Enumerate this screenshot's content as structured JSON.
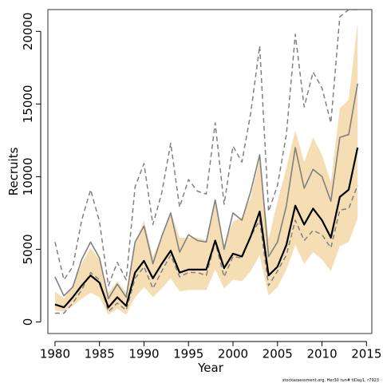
{
  "chart_data": {
    "type": "line",
    "title": "",
    "xlabel": "Year",
    "ylabel": "Recruits",
    "xlim": [
      1979.2,
      2015.6
    ],
    "ylim": [
      -800,
      21500
    ],
    "xticks": [
      1980,
      1985,
      1990,
      1995,
      2000,
      2005,
      2010,
      2015
    ],
    "yticks": [
      0,
      5000,
      10000,
      15000,
      20000
    ],
    "grid": false,
    "legend": "none",
    "x": [
      1980,
      1981,
      1982,
      1983,
      1984,
      1985,
      1986,
      1987,
      1988,
      1989,
      1990,
      1991,
      1992,
      1993,
      1994,
      1995,
      1996,
      1997,
      1998,
      1999,
      2000,
      2001,
      2002,
      2003,
      2004,
      2005,
      2006,
      2007,
      2008,
      2009,
      2010,
      2011,
      2012,
      2013,
      2014
    ],
    "band": {
      "color": "#f5deb3",
      "lower": [
        800,
        700,
        1100,
        1600,
        2000,
        1700,
        500,
        900,
        500,
        1700,
        2400,
        1700,
        2300,
        3000,
        2100,
        2200,
        2200,
        2200,
        3600,
        2300,
        2900,
        2800,
        3500,
        4600,
        1800,
        2400,
        3600,
        5300,
        4000,
        4800,
        4300,
        3500,
        5200,
        5500,
        7100
      ],
      "upper": [
        2100,
        1600,
        2500,
        4000,
        5100,
        4300,
        2000,
        2800,
        2000,
        5300,
        7000,
        4500,
        5900,
        7600,
        5800,
        5800,
        5800,
        5600,
        8200,
        5300,
        6900,
        7200,
        8600,
        11200,
        5700,
        8300,
        10600,
        13200,
        11000,
        12700,
        11500,
        9600,
        14700,
        15300,
        20600
      ]
    },
    "series": [
      {
        "name": "",
        "color": "#000000",
        "width": 2.2,
        "dash": "",
        "values": [
          1200,
          1000,
          1700,
          2500,
          3200,
          2700,
          1000,
          1700,
          1100,
          3400,
          4200,
          3000,
          4000,
          4900,
          3400,
          3600,
          3600,
          3600,
          5600,
          3700,
          4700,
          4500,
          5900,
          7600,
          3200,
          3800,
          5300,
          8000,
          6700,
          7800,
          7000,
          5800,
          8600,
          9100,
          12000
        ]
      },
      {
        "name": "",
        "color": "#808080",
        "width": 1.6,
        "dash": "",
        "values": [
          3100,
          1800,
          2400,
          4300,
          5500,
          4400,
          1600,
          2600,
          1700,
          5500,
          6600,
          4000,
          5900,
          7500,
          4800,
          6000,
          5600,
          5500,
          8400,
          5000,
          7500,
          7000,
          9000,
          11500,
          4500,
          5500,
          8000,
          12000,
          9200,
          10500,
          10000,
          8300,
          12700,
          12900,
          16400
        ]
      },
      {
        "name": "",
        "color": "#808080",
        "width": 1.5,
        "dash": "6,4",
        "values": [
          5500,
          2900,
          3800,
          7000,
          9100,
          6900,
          2500,
          4100,
          2900,
          9300,
          10900,
          6700,
          8900,
          12300,
          7900,
          9800,
          9000,
          8800,
          13700,
          8100,
          12100,
          11000,
          14400,
          19000,
          7600,
          9400,
          12900,
          19800,
          14800,
          17200,
          16100,
          13700,
          21000,
          21500,
          21500
        ]
      },
      {
        "name": "",
        "color": "#808080",
        "width": 1.5,
        "dash": "6,4",
        "values": [
          600,
          600,
          1300,
          2200,
          3400,
          2900,
          700,
          1300,
          800,
          3000,
          3800,
          2300,
          3500,
          4600,
          3100,
          3400,
          3400,
          3200,
          5500,
          3100,
          4500,
          4400,
          5900,
          7000,
          2500,
          3500,
          4600,
          7000,
          5600,
          6300,
          6000,
          5100,
          7700,
          7800,
          9400
        ]
      }
    ]
  },
  "footer": {
    "credit": "stockassessment.org,  Her30  run# tiDay1, r7923"
  }
}
